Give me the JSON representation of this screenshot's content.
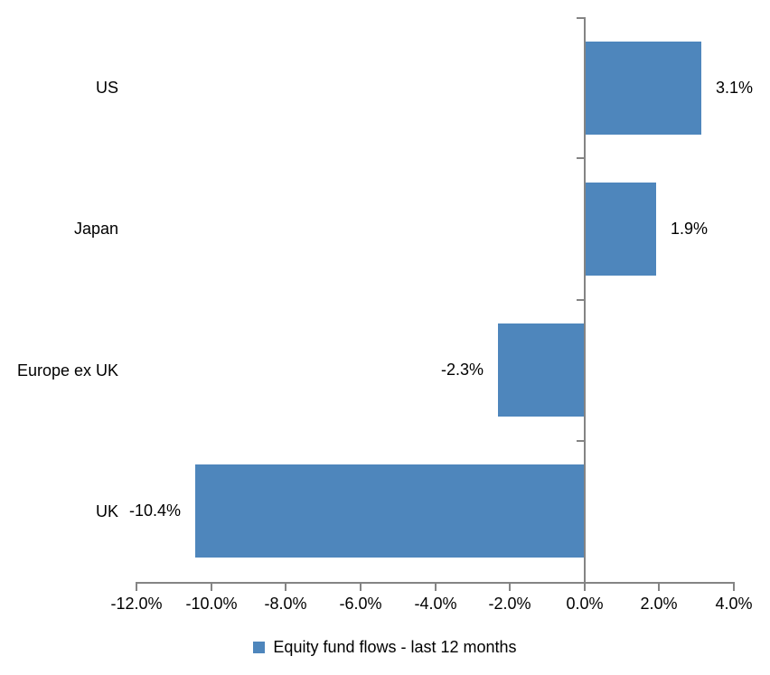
{
  "chart_data": {
    "type": "bar",
    "orientation": "horizontal",
    "title": "",
    "categories": [
      "US",
      "Japan",
      "Europe ex UK",
      "UK"
    ],
    "values": [
      3.1,
      1.9,
      -2.3,
      -10.4
    ],
    "value_labels": [
      "3.1%",
      "1.9%",
      "-2.3%",
      "-10.4%"
    ],
    "series": [
      {
        "name": "Equity fund flows - last 12 months",
        "values": [
          3.1,
          1.9,
          -2.3,
          -10.4
        ]
      }
    ],
    "xlabel": "",
    "ylabel": "",
    "xlim": [
      -12,
      4
    ],
    "x_tick_step": 2,
    "x_tick_labels": [
      "-12.0%",
      "-10.0%",
      "-8.0%",
      "-6.0%",
      "-4.0%",
      "-2.0%",
      "0.0%",
      "2.0%",
      "4.0%"
    ],
    "grid": false,
    "legend": "Equity fund flows - last 12 months",
    "legend_position": "bottom-center",
    "colors": {
      "bar": "#4e86bc",
      "axis": "#848484",
      "text": "#000000",
      "background": "#ffffff"
    }
  }
}
